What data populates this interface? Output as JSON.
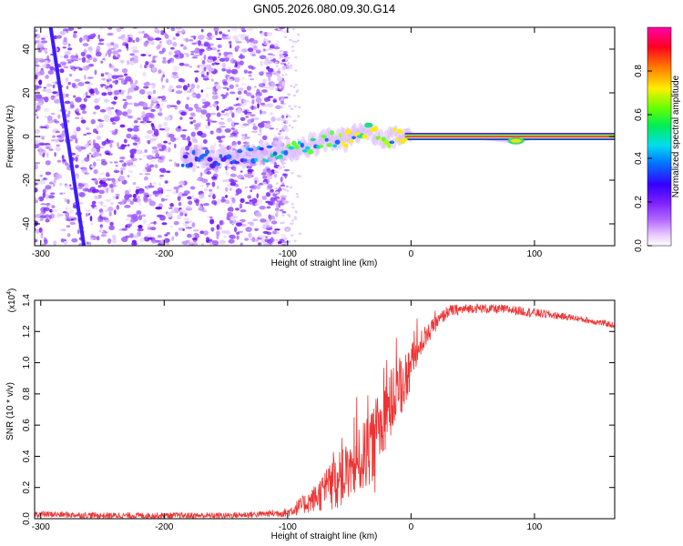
{
  "title": "GN05.2026.080.09.30.G14",
  "chart_data": [
    {
      "type": "heatmap",
      "xlabel": "Height of straight line (km)",
      "ylabel": "Frequency (Hz)",
      "xlim": [
        -305,
        165
      ],
      "ylim": [
        -50,
        50
      ],
      "xticks": [
        -300,
        -200,
        -100,
        0,
        100
      ],
      "yticks": [
        -40,
        -20,
        0,
        20,
        40
      ],
      "colorbar": {
        "label": "Normalized spectral amplitude",
        "ticks": [
          0.0,
          0.2,
          0.4,
          0.6,
          0.8
        ],
        "range": [
          0,
          1
        ]
      },
      "features": {
        "noise_region_x": [
          -305,
          -100
        ],
        "drifting_trace": {
          "start": [
            -292,
            50
          ],
          "end": [
            -265,
            -50
          ]
        },
        "ridge": [
          [
            -185,
            -10
          ],
          [
            -155,
            -10
          ],
          [
            -118,
            -8
          ],
          [
            -100,
            -6
          ],
          [
            -80,
            -4
          ],
          [
            -65,
            -1
          ],
          [
            -55,
            -2
          ],
          [
            -45,
            2
          ],
          [
            -38,
            3
          ],
          [
            -30,
            1
          ],
          [
            -20,
            -1
          ],
          [
            -10,
            0
          ],
          [
            0,
            0
          ],
          [
            50,
            0
          ],
          [
            85,
            -2
          ],
          [
            100,
            0
          ],
          [
            165,
            0
          ]
        ]
      }
    },
    {
      "type": "line",
      "xlabel": "Height of straight line (km)",
      "ylabel": "SNR (10 * v/v)",
      "y_multiplier": "(x10",
      "y_multiplier_exp": "4",
      "xlim": [
        -305,
        165
      ],
      "ylim": [
        0,
        1.4
      ],
      "xticks": [
        -300,
        -200,
        -100,
        0,
        100
      ],
      "yticks": [
        "0.0",
        "0.2",
        "0.4",
        "0.6",
        "0.8",
        "1.0",
        "1.2",
        "1.4"
      ],
      "series": [
        {
          "name": "SNR",
          "color": "#ee3333",
          "x": [
            -305,
            -250,
            -200,
            -150,
            -120,
            -100,
            -80,
            -60,
            -50,
            -40,
            -30,
            -20,
            -10,
            0,
            10,
            20,
            30,
            50,
            80,
            100,
            130,
            165
          ],
          "y": [
            0.03,
            0.02,
            0.02,
            0.02,
            0.03,
            0.04,
            0.12,
            0.24,
            0.3,
            0.38,
            0.5,
            0.68,
            0.82,
            0.98,
            1.15,
            1.25,
            1.33,
            1.35,
            1.34,
            1.32,
            1.29,
            1.24
          ],
          "noise_amplitude": [
            0.02,
            0.02,
            0.02,
            0.02,
            0.02,
            0.03,
            0.08,
            0.18,
            0.18,
            0.22,
            0.25,
            0.22,
            0.2,
            0.14,
            0.08,
            0.05,
            0.04,
            0.03,
            0.03,
            0.03,
            0.02,
            0.02
          ]
        }
      ]
    }
  ]
}
